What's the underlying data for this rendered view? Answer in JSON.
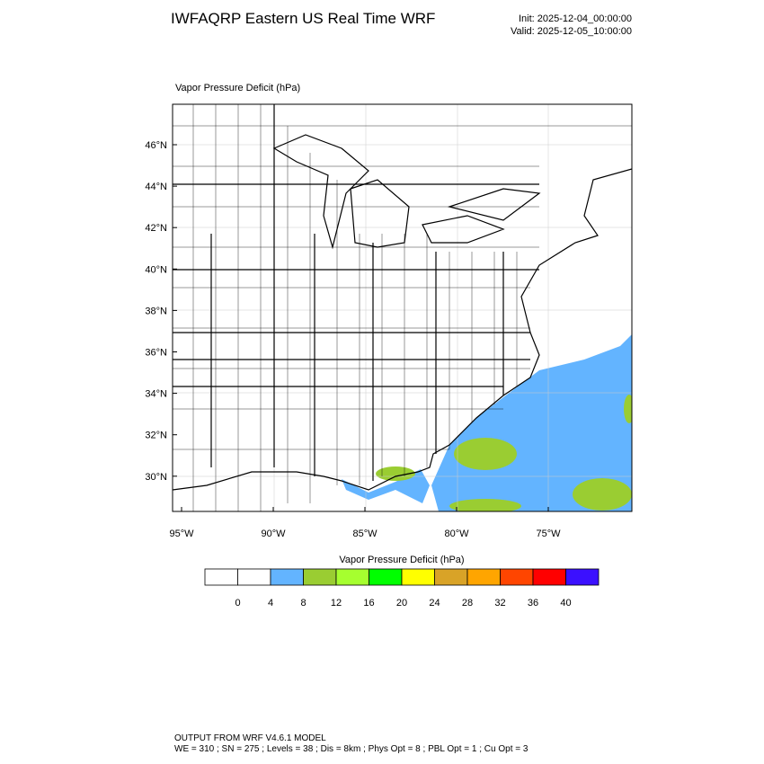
{
  "header": {
    "title": "IWFAQRP Eastern US Real Time WRF",
    "init": "Init: 2025-12-04_00:00:00",
    "valid": "Valid: 2025-12-05_10:00:00"
  },
  "map": {
    "title": "Vapor Pressure Deficit   (hPa)",
    "lat_labels": [
      "46°N",
      "44°N",
      "42°N",
      "40°N",
      "38°N",
      "36°N",
      "34°N",
      "32°N",
      "30°N"
    ],
    "lon_labels": [
      "95°W",
      "90°W",
      "85°W",
      "80°W",
      "75°W"
    ]
  },
  "colorbar": {
    "title": "Vapor Pressure Deficit  (hPa)",
    "colors": [
      "#ffffff",
      "#ffffff",
      "#63b4ff",
      "#9acd32",
      "#a6ff2f",
      "#00ff00",
      "#ffff00",
      "#d9a327",
      "#ffa500",
      "#ff4500",
      "#ff0000",
      "#3b10ff"
    ],
    "labels": [
      0,
      4,
      8,
      12,
      16,
      20,
      24,
      28,
      32,
      36,
      40
    ]
  },
  "footer": {
    "line1": "OUTPUT FROM WRF V4.6.1 MODEL",
    "line2": "WE = 310 ; SN = 275 ; Levels = 38 ; Dis = 8km ; Phys Opt = 8 ; PBL Opt = 1 ; Cu Opt = 3"
  }
}
